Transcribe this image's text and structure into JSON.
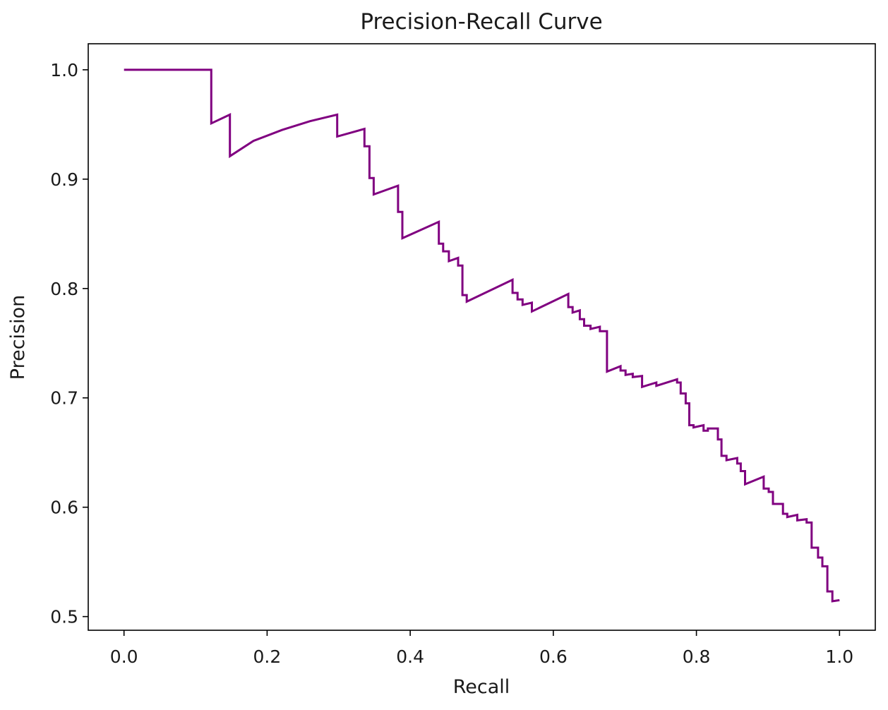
{
  "chart_data": {
    "type": "line",
    "title": "Precision-Recall Curve",
    "xlabel": "Recall",
    "ylabel": "Precision",
    "xlim": [
      -0.05,
      1.05
    ],
    "ylim": [
      0.4875,
      1.0238
    ],
    "xticks": [
      0.0,
      0.2,
      0.4,
      0.6,
      0.8,
      1.0
    ],
    "xtick_labels": [
      "0.0",
      "0.2",
      "0.4",
      "0.6",
      "0.8",
      "1.0"
    ],
    "yticks": [
      0.5,
      0.6,
      0.7,
      0.8,
      0.9,
      1.0
    ],
    "ytick_labels": [
      "0.5",
      "0.6",
      "0.7",
      "0.8",
      "0.9",
      "1.0"
    ],
    "grid": false,
    "line_color": "#800080",
    "series": [
      {
        "x": [
          0,
          0.122,
          0.122,
          0.148,
          0.148,
          0.181,
          0.221,
          0.26,
          0.298,
          0.298,
          0.336,
          0.336,
          0.343,
          0.343,
          0.349,
          0.349,
          0.383,
          0.383,
          0.389,
          0.389,
          0.44,
          0.44,
          0.446,
          0.446,
          0.454,
          0.454,
          0.467,
          0.467,
          0.473,
          0.473,
          0.479,
          0.479,
          0.543,
          0.543,
          0.55,
          0.55,
          0.557,
          0.557,
          0.57,
          0.57,
          0.621,
          0.621,
          0.627,
          0.627,
          0.637,
          0.637,
          0.643,
          0.643,
          0.652,
          0.652,
          0.665,
          0.665,
          0.675,
          0.675,
          0.694,
          0.694,
          0.701,
          0.701,
          0.711,
          0.711,
          0.724,
          0.724,
          0.744,
          0.744,
          0.773,
          0.773,
          0.778,
          0.778,
          0.785,
          0.785,
          0.79,
          0.79,
          0.796,
          0.796,
          0.81,
          0.81,
          0.816,
          0.816,
          0.83,
          0.83,
          0.835,
          0.835,
          0.842,
          0.842,
          0.857,
          0.857,
          0.862,
          0.862,
          0.868,
          0.868,
          0.894,
          0.894,
          0.901,
          0.901,
          0.907,
          0.907,
          0.921,
          0.921,
          0.927,
          0.927,
          0.941,
          0.941,
          0.954,
          0.954,
          0.961,
          0.961,
          0.97,
          0.97,
          0.976,
          0.976,
          0.983,
          0.983,
          0.99,
          0.99,
          1.0
        ],
        "y": [
          1.0,
          1.0,
          0.951,
          0.959,
          0.921,
          0.935,
          0.945,
          0.953,
          0.959,
          0.939,
          0.946,
          0.93,
          0.93,
          0.901,
          0.901,
          0.886,
          0.894,
          0.87,
          0.87,
          0.846,
          0.861,
          0.841,
          0.841,
          0.834,
          0.834,
          0.825,
          0.828,
          0.821,
          0.821,
          0.794,
          0.794,
          0.788,
          0.808,
          0.796,
          0.796,
          0.79,
          0.79,
          0.785,
          0.787,
          0.779,
          0.795,
          0.783,
          0.783,
          0.778,
          0.78,
          0.772,
          0.772,
          0.766,
          0.766,
          0.763,
          0.765,
          0.761,
          0.761,
          0.724,
          0.729,
          0.725,
          0.725,
          0.721,
          0.722,
          0.719,
          0.72,
          0.71,
          0.714,
          0.711,
          0.717,
          0.714,
          0.714,
          0.704,
          0.704,
          0.695,
          0.695,
          0.675,
          0.675,
          0.673,
          0.675,
          0.67,
          0.67,
          0.672,
          0.672,
          0.662,
          0.662,
          0.647,
          0.647,
          0.643,
          0.645,
          0.64,
          0.64,
          0.633,
          0.633,
          0.621,
          0.628,
          0.617,
          0.617,
          0.614,
          0.614,
          0.603,
          0.603,
          0.594,
          0.594,
          0.591,
          0.593,
          0.588,
          0.589,
          0.586,
          0.586,
          0.563,
          0.563,
          0.554,
          0.554,
          0.546,
          0.546,
          0.523,
          0.523,
          0.514,
          0.515
        ]
      }
    ]
  }
}
